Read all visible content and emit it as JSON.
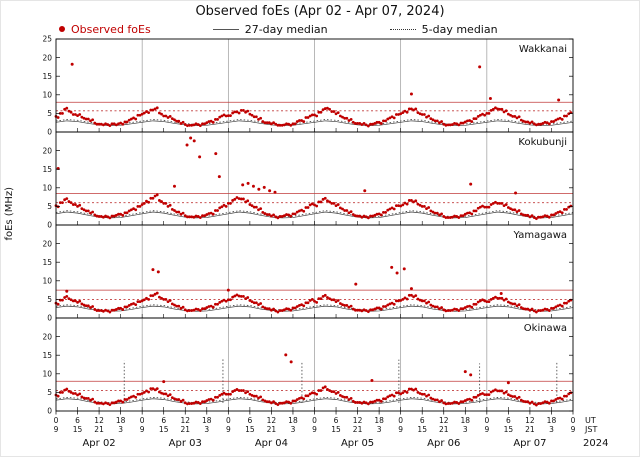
{
  "title": "Observed foEs (Apr 02 - Apr 07, 2024)",
  "legend": [
    {
      "label": "Observed foEs",
      "marker": "dot",
      "color": "#c00000"
    },
    {
      "label": "27-day median",
      "marker": "line",
      "color": "#555555"
    },
    {
      "label": "5-day median",
      "marker": "dotted",
      "color": "#333333"
    }
  ],
  "colors": {
    "dot": "#c00000",
    "median": "#3a3a3a",
    "threshold": "#c03a3a",
    "grid": "#9a9a9a",
    "frame": "#000000"
  },
  "y_axis": {
    "label": "foEs (MHz)",
    "min": 0,
    "max": 25,
    "ticks": [
      0,
      5,
      10,
      15,
      20,
      25
    ]
  },
  "x_axis": {
    "hours_total": 144,
    "label_step_hours": 6,
    "ut_labels": [
      "0",
      "6",
      "12",
      "18",
      "0",
      "6",
      "12",
      "18",
      "0",
      "6",
      "12",
      "18",
      "0",
      "6",
      "12",
      "18",
      "0",
      "6",
      "12",
      "18",
      "0",
      "6",
      "12",
      "18",
      "0"
    ],
    "jst_labels": [
      "9",
      "15",
      "21",
      "3",
      "9",
      "15",
      "21",
      "3",
      "9",
      "15",
      "21",
      "3",
      "9",
      "15",
      "21",
      "3",
      "9",
      "15",
      "21",
      "3",
      "9",
      "15",
      "21",
      "3",
      "9"
    ],
    "row_labels": [
      "UT",
      "JST"
    ],
    "date_labels": [
      "Apr 02",
      "Apr 03",
      "Apr 04",
      "Apr 05",
      "Apr 06",
      "Apr 07"
    ],
    "year_label": "2024"
  },
  "chart_data": {
    "type": "scatter",
    "x_unit": "hours since 2024-04-02 00:00 UT",
    "hours_total": 144,
    "panels": [
      {
        "name": "Wakkanai",
        "threshold_solid": 8,
        "threshold_dotted": 5.7,
        "scatter_step_hours": 1.2,
        "scatter": [
          4.2,
          5.0,
          6.1,
          5.6,
          4.7,
          4.4,
          4.0,
          3.5,
          3.0,
          2.4,
          2.1,
          1.9,
          2.0,
          2.2,
          1.9,
          2.4,
          2.7,
          3.2,
          3.8,
          4.5,
          4.8,
          5.5,
          5.9,
          6.2,
          5.1,
          4.3,
          3.9,
          3.6,
          2.9,
          2.3,
          2.0,
          1.8,
          1.9,
          2.0,
          2.2,
          2.5,
          2.9,
          3.4,
          4.0,
          4.6,
          4.4,
          5.1,
          5.4,
          5.8,
          5.3,
          4.8,
          4.1,
          3.4,
          2.8,
          2.5,
          2.2,
          2.1,
          1.8,
          1.9,
          2.1,
          2.2,
          2.8,
          3.1,
          3.9,
          4.3,
          4.6,
          5.3,
          6.0,
          6.4,
          5.5,
          4.9,
          4.3,
          3.7,
          3.1,
          2.6,
          2.3,
          2.0,
          1.9,
          2.1,
          2.3,
          2.6,
          3.0,
          3.5,
          4.1,
          4.7,
          4.9,
          5.6,
          6.2,
          5.9,
          5.2,
          4.7,
          4.0,
          3.6,
          3.0,
          2.5,
          2.1,
          1.9,
          2.0,
          2.2,
          2.4,
          2.7,
          3.1,
          3.6,
          4.2,
          4.8,
          5.0,
          5.8,
          6.5,
          6.1,
          5.4,
          4.8,
          4.2,
          3.8,
          3.2,
          2.7,
          2.4,
          2.2,
          2.1,
          2.3,
          2.5,
          2.8,
          3.2,
          3.7,
          4.3,
          4.9
        ],
        "scatter_extra": [
          [
            4.5,
            18.2
          ],
          [
            99,
            10.2
          ],
          [
            118,
            17.5
          ],
          [
            121,
            9.0
          ],
          [
            140,
            8.6
          ]
        ],
        "median27_step_hours": 3,
        "median27": [
          2.6,
          3.0,
          2.8,
          2.3,
          1.9,
          1.7,
          1.8,
          2.2,
          2.6,
          3.0,
          2.8,
          2.3,
          1.9,
          1.7,
          1.8,
          2.2,
          2.6,
          3.0,
          2.8,
          2.3,
          1.9,
          1.7,
          1.8,
          2.2,
          2.6,
          3.0,
          2.8,
          2.3,
          1.9,
          1.7,
          1.8,
          2.2,
          2.6,
          3.0,
          2.8,
          2.3,
          1.9,
          1.7,
          1.8,
          2.2,
          2.6,
          3.0,
          2.8,
          2.3,
          1.9,
          1.7,
          1.8,
          2.2,
          2.6
        ],
        "median5_offset": 0.35,
        "median5_spikes": []
      },
      {
        "name": "Kokubunji",
        "threshold_solid": 8.5,
        "threshold_dotted": 6.0,
        "scatter_step_hours": 1.2,
        "scatter": [
          5.2,
          6.0,
          6.8,
          6.3,
          5.5,
          5.0,
          4.4,
          3.8,
          3.2,
          2.7,
          2.3,
          2.1,
          2.2,
          2.4,
          2.6,
          2.9,
          3.3,
          3.8,
          4.4,
          5.0,
          5.5,
          6.4,
          7.2,
          7.8,
          6.6,
          5.8,
          5.0,
          4.2,
          3.5,
          2.9,
          2.5,
          2.2,
          2.1,
          2.3,
          2.5,
          2.8,
          3.2,
          3.9,
          4.6,
          5.3,
          5.8,
          6.6,
          7.4,
          7.0,
          6.2,
          5.5,
          4.8,
          4.1,
          3.4,
          2.8,
          2.4,
          2.2,
          2.3,
          2.5,
          2.7,
          3.0,
          3.5,
          4.0,
          4.7,
          5.4,
          5.4,
          6.2,
          6.9,
          6.5,
          5.8,
          5.2,
          4.6,
          3.9,
          3.3,
          2.8,
          2.4,
          2.1,
          2.2,
          2.4,
          2.6,
          3.0,
          3.4,
          4.0,
          4.6,
          5.2,
          5.1,
          5.9,
          6.6,
          6.2,
          5.6,
          5.0,
          4.4,
          3.8,
          3.2,
          2.7,
          2.3,
          2.0,
          2.1,
          2.3,
          2.5,
          2.9,
          3.3,
          3.8,
          4.5,
          5.1,
          4.8,
          5.5,
          6.1,
          5.8,
          5.2,
          4.7,
          4.1,
          3.6,
          3.0,
          2.6,
          2.2,
          2.0,
          2.1,
          2.2,
          2.4,
          2.7,
          3.1,
          3.6,
          4.2,
          4.8
        ],
        "scatter_extra": [
          [
            0.6,
            15.2
          ],
          [
            33,
            10.4
          ],
          [
            36.5,
            21.5
          ],
          [
            37.5,
            23.4
          ],
          [
            38.5,
            22.6
          ],
          [
            40,
            18.3
          ],
          [
            44.5,
            19.2
          ],
          [
            45.5,
            13.0
          ],
          [
            52,
            10.8
          ],
          [
            53.5,
            11.2
          ],
          [
            55,
            10.4
          ],
          [
            56.5,
            9.6
          ],
          [
            58,
            10.1
          ],
          [
            59.5,
            9.2
          ],
          [
            61,
            8.8
          ],
          [
            86,
            9.2
          ],
          [
            115.5,
            11.0
          ],
          [
            128,
            8.6
          ]
        ],
        "median27_step_hours": 3,
        "median27": [
          3.0,
          3.5,
          3.2,
          2.6,
          2.1,
          1.9,
          2.0,
          2.5,
          3.0,
          3.5,
          3.2,
          2.6,
          2.1,
          1.9,
          2.0,
          2.5,
          3.0,
          3.5,
          3.2,
          2.6,
          2.1,
          1.9,
          2.0,
          2.5,
          3.0,
          3.5,
          3.2,
          2.6,
          2.1,
          1.9,
          2.0,
          2.5,
          3.0,
          3.5,
          3.2,
          2.6,
          2.1,
          1.9,
          2.0,
          2.5,
          3.0,
          3.5,
          3.2,
          2.6,
          2.1,
          1.9,
          2.0,
          2.5,
          3.0
        ],
        "median5_offset": 0.35,
        "median5_spikes": []
      },
      {
        "name": "Yamagawa",
        "threshold_solid": 7.5,
        "threshold_dotted": 5.0,
        "scatter_step_hours": 1.2,
        "scatter": [
          4.0,
          4.8,
          5.5,
          5.2,
          4.6,
          4.2,
          3.8,
          3.3,
          2.8,
          2.3,
          2.0,
          1.8,
          1.9,
          2.1,
          2.3,
          2.6,
          3.0,
          3.4,
          3.9,
          4.4,
          4.6,
          5.3,
          6.0,
          6.4,
          5.6,
          5.0,
          4.4,
          3.8,
          3.2,
          2.6,
          2.2,
          2.0,
          2.1,
          2.3,
          2.5,
          2.8,
          3.2,
          3.7,
          4.2,
          4.8,
          4.9,
          5.6,
          6.2,
          5.8,
          5.2,
          4.7,
          4.1,
          3.6,
          3.0,
          2.5,
          2.1,
          1.9,
          2.0,
          2.2,
          2.4,
          2.7,
          3.1,
          3.6,
          4.1,
          4.7,
          4.5,
          5.2,
          5.8,
          5.5,
          4.9,
          4.4,
          3.9,
          3.4,
          2.9,
          2.4,
          2.1,
          1.9,
          2.0,
          2.2,
          2.4,
          2.7,
          3.1,
          3.5,
          4.0,
          4.6,
          4.7,
          5.4,
          6.1,
          5.7,
          5.1,
          4.6,
          4.0,
          3.5,
          3.0,
          2.5,
          2.2,
          2.0,
          2.1,
          2.3,
          2.5,
          2.8,
          3.2,
          3.7,
          4.3,
          4.9,
          4.4,
          5.0,
          5.6,
          5.3,
          4.8,
          4.3,
          3.8,
          3.3,
          2.8,
          2.4,
          2.1,
          1.9,
          2.0,
          2.1,
          2.3,
          2.6,
          3.0,
          3.5,
          4.0,
          4.5
        ],
        "scatter_extra": [
          [
            3,
            7.2
          ],
          [
            27,
            13.0
          ],
          [
            28.5,
            12.4
          ],
          [
            48,
            7.5
          ],
          [
            83.5,
            9.1
          ],
          [
            93.5,
            13.6
          ],
          [
            95,
            12.1
          ],
          [
            97,
            13.2
          ],
          [
            99,
            7.9
          ],
          [
            124,
            6.6
          ]
        ],
        "median27_step_hours": 3,
        "median27": [
          2.8,
          3.2,
          3.0,
          2.4,
          2.0,
          1.8,
          1.9,
          2.3,
          2.8,
          3.2,
          3.0,
          2.4,
          2.0,
          1.8,
          1.9,
          2.3,
          2.8,
          3.2,
          3.0,
          2.4,
          2.0,
          1.8,
          1.9,
          2.3,
          2.8,
          3.2,
          3.0,
          2.4,
          2.0,
          1.8,
          1.9,
          2.3,
          2.8,
          3.2,
          3.0,
          2.4,
          2.0,
          1.8,
          1.9,
          2.3,
          2.8,
          3.2,
          3.0,
          2.4,
          2.0,
          1.8,
          1.9,
          2.3,
          2.8
        ],
        "median5_offset": 0.35,
        "median5_spikes": []
      },
      {
        "name": "Okinawa",
        "threshold_solid": 8,
        "threshold_dotted": 5.5,
        "scatter_step_hours": 1.2,
        "scatter": [
          4.3,
          5.0,
          5.6,
          5.3,
          4.7,
          4.3,
          3.8,
          3.4,
          2.9,
          2.4,
          2.1,
          1.9,
          2.0,
          2.2,
          2.4,
          2.7,
          3.1,
          3.5,
          4.0,
          4.5,
          4.7,
          5.4,
          6.0,
          5.7,
          5.1,
          4.6,
          4.1,
          3.6,
          3.1,
          2.6,
          2.2,
          2.0,
          2.1,
          2.3,
          2.5,
          2.8,
          3.2,
          3.7,
          4.2,
          4.8,
          4.5,
          5.2,
          5.8,
          5.5,
          4.9,
          4.5,
          4.0,
          3.5,
          3.0,
          2.5,
          2.2,
          2.0,
          2.1,
          2.2,
          2.4,
          2.7,
          3.1,
          3.6,
          4.1,
          4.6,
          4.8,
          5.5,
          6.2,
          5.8,
          5.2,
          4.7,
          4.2,
          3.7,
          3.1,
          2.6,
          2.3,
          2.1,
          2.2,
          2.4,
          2.6,
          2.9,
          3.3,
          3.8,
          4.3,
          4.9,
          4.6,
          5.3,
          5.9,
          5.6,
          5.0,
          4.5,
          4.0,
          3.5,
          3.0,
          2.5,
          2.2,
          2.0,
          2.1,
          2.3,
          2.5,
          2.8,
          3.2,
          3.7,
          4.2,
          4.7,
          4.4,
          5.1,
          5.7,
          5.4,
          4.8,
          4.4,
          3.9,
          3.4,
          2.9,
          2.5,
          2.1,
          1.9,
          2.0,
          2.2,
          2.4,
          2.7,
          3.1,
          3.5,
          4.0,
          4.6
        ],
        "scatter_extra": [
          [
            30,
            7.9
          ],
          [
            64,
            15.1
          ],
          [
            65.5,
            13.2
          ],
          [
            88,
            8.2
          ],
          [
            114,
            10.6
          ],
          [
            115.5,
            9.7
          ],
          [
            126,
            7.6
          ]
        ],
        "median27_step_hours": 3,
        "median27": [
          2.9,
          3.3,
          3.1,
          2.5,
          2.1,
          1.9,
          2.0,
          2.4,
          2.9,
          3.3,
          3.1,
          2.5,
          2.1,
          1.9,
          2.0,
          2.4,
          2.9,
          3.3,
          3.1,
          2.5,
          2.1,
          1.9,
          2.0,
          2.4,
          2.9,
          3.3,
          3.1,
          2.5,
          2.1,
          1.9,
          2.0,
          2.4,
          2.9,
          3.3,
          3.1,
          2.5,
          2.1,
          1.9,
          2.0,
          2.4,
          2.9,
          3.3,
          3.1,
          2.5,
          2.1,
          1.9,
          2.0,
          2.4,
          2.9
        ],
        "median5_offset": 0.35,
        "median5_spikes": [
          [
            19,
            13.5
          ],
          [
            46.5,
            14.2
          ],
          [
            68.5,
            13.0
          ],
          [
            95.5,
            13.8
          ],
          [
            118,
            12.8
          ],
          [
            139.5,
            13.4
          ]
        ]
      }
    ]
  }
}
